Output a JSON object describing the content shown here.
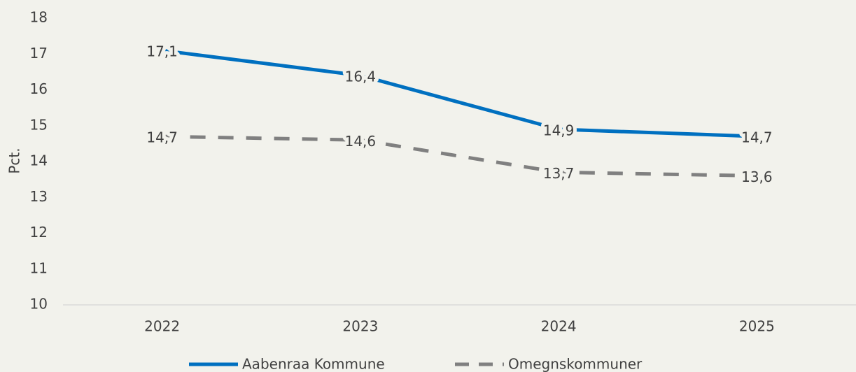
{
  "chart_data": {
    "type": "line",
    "y_label": "Pct.",
    "categories": [
      "2022",
      "2023",
      "2024",
      "2025"
    ],
    "series": [
      {
        "name": "Aabenraa Kommune",
        "color": "#0070c0",
        "dash": "solid",
        "values": [
          17.1,
          16.4,
          14.9,
          14.7
        ],
        "value_labels": [
          "17,1",
          "16,4",
          "14,9",
          "14,7"
        ]
      },
      {
        "name": "Omegnskommuner",
        "color": "#808080",
        "dash": "dashed",
        "values": [
          14.7,
          14.6,
          13.7,
          13.6
        ],
        "value_labels": [
          "14,7",
          "14,6",
          "13,7",
          "13,6"
        ]
      }
    ],
    "ylim": [
      10,
      18
    ],
    "yticks": [
      10,
      11,
      12,
      13,
      14,
      15,
      16,
      17,
      18
    ],
    "grid": false,
    "legend": "bottom"
  }
}
